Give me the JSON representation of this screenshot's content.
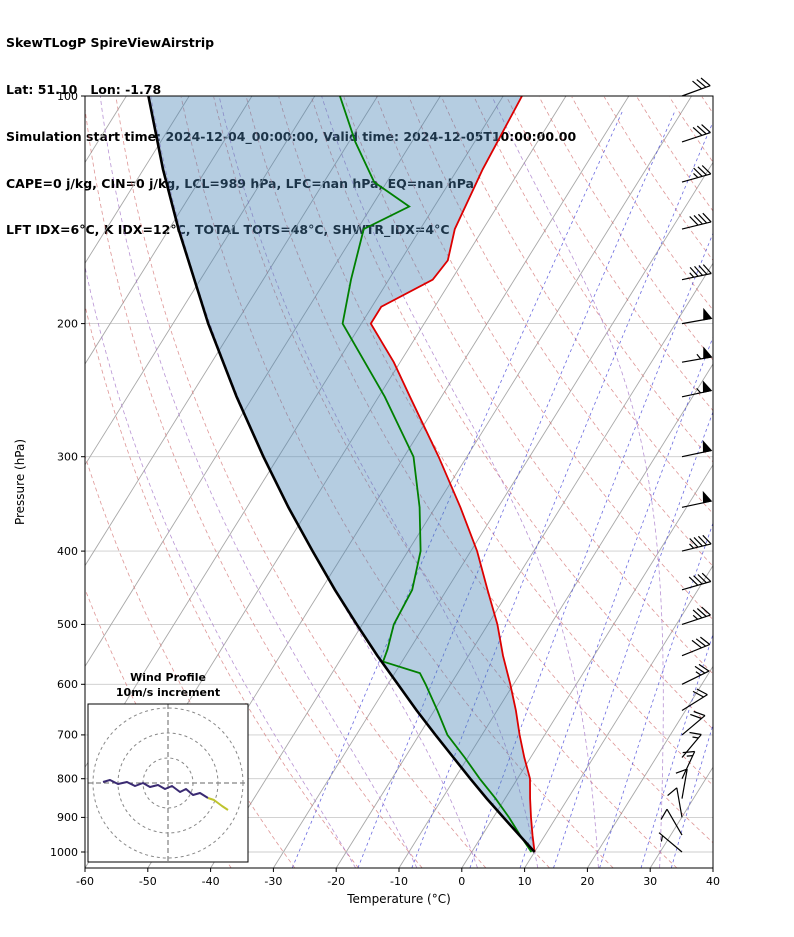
{
  "header": {
    "title": "SkewTLogP SpireViewAirstrip",
    "location": "Lat: 51.10   Lon: -1.78",
    "times": "Simulation start time: 2024-12-04_00:00:00, Valid time: 2024-12-05T10:00:00.00",
    "cape_line": "CAPE=0 j/kg, CIN=0 j/kg, LCL=989 hPa, LFC=nan hPa, EQ=nan hPa",
    "index_line": "LFT IDX=6°C, K IDX=12°C, TOTAL TOTS=48°C, SHWTR_IDX=4°C"
  },
  "chart_data": {
    "type": "skewt-logp",
    "pressure_axis": {
      "label": "Pressure (hPa)",
      "units": "hPa",
      "min": 100,
      "max": 1050,
      "ticks": [
        100,
        200,
        300,
        400,
        500,
        600,
        700,
        800,
        900,
        1000
      ]
    },
    "temperature_axis": {
      "label": "Temperature (°C)",
      "units": "°C",
      "min": -60,
      "max": 40,
      "ticks": [
        -60,
        -50,
        -40,
        -30,
        -20,
        -10,
        0,
        10,
        20,
        30,
        40
      ]
    },
    "skew_per_decade": 75,
    "profiles": {
      "temperature": {
        "pressure": [
          1000,
          950,
          900,
          850,
          800,
          750,
          700,
          650,
          600,
          550,
          500,
          450,
          400,
          350,
          300,
          250,
          225,
          200,
          190,
          175,
          165,
          150,
          125,
          100
        ],
        "temp": [
          10,
          8,
          6,
          4,
          2,
          -1,
          -4,
          -7,
          -10.5,
          -14.5,
          -18.5,
          -23.5,
          -29,
          -36,
          -44.5,
          -55,
          -61,
          -68.5,
          -68.5,
          -63,
          -62.5,
          -64.5,
          -66,
          -67
        ]
      },
      "dewpoint": {
        "pressure": [
          1000,
          950,
          900,
          850,
          800,
          750,
          700,
          650,
          600,
          580,
          560,
          540,
          500,
          450,
          400,
          350,
          300,
          250,
          200,
          175,
          150,
          140,
          130,
          115,
          100
        ],
        "temp": [
          9.5,
          6,
          2.5,
          -1.5,
          -6,
          -10.5,
          -15.5,
          -19.5,
          -24,
          -26,
          -33,
          -33.5,
          -35,
          -35.5,
          -38,
          -42.5,
          -48.5,
          -59,
          -73,
          -76,
          -79,
          -74,
          -82,
          -89,
          -96
        ]
      },
      "parcel": {
        "pressure": [
          1000,
          950,
          900,
          850,
          800,
          750,
          700,
          650,
          600,
          550,
          500,
          450,
          400,
          350,
          300,
          250,
          200,
          150,
          125,
          100
        ],
        "temp": [
          10,
          5.9,
          1.6,
          -2.9,
          -7.5,
          -12.3,
          -17.4,
          -22.8,
          -28.4,
          -34.5,
          -40.9,
          -47.8,
          -55.2,
          -63.4,
          -72.4,
          -82.6,
          -94.4,
          -108.5,
          -116.9,
          -126.5
        ]
      }
    },
    "wind_barbs": {
      "units": "m/s",
      "pressure": [
        100,
        115,
        130,
        150,
        175,
        200,
        225,
        250,
        300,
        350,
        400,
        450,
        500,
        550,
        600,
        650,
        700,
        750,
        800,
        850,
        900,
        950,
        1000
      ],
      "speed": [
        28,
        30,
        33,
        38,
        45,
        52,
        55,
        55,
        52,
        50,
        45,
        38,
        33,
        28,
        25,
        22,
        20,
        16,
        14,
        12,
        10,
        9,
        7
      ],
      "direction": [
        70,
        72,
        74,
        76,
        78,
        80,
        80,
        78,
        78,
        78,
        76,
        74,
        72,
        68,
        64,
        58,
        50,
        40,
        25,
        10,
        350,
        330,
        310
      ]
    },
    "hodograph": {
      "title": "Wind Profile",
      "subtitle": "10m/s increment",
      "ring_increment_ms": 10,
      "rings": [
        10,
        20,
        30
      ],
      "trace_low": [
        [
          24,
          -10.8
        ],
        [
          21.6,
          -9.2
        ],
        [
          18.4,
          -6.8
        ],
        [
          16,
          -6
        ]
      ],
      "trace_upper": [
        [
          16,
          -6
        ],
        [
          12.8,
          -4
        ],
        [
          10,
          -4.8
        ],
        [
          7.2,
          -2.4
        ],
        [
          4.8,
          -3.6
        ],
        [
          1.6,
          -1.2
        ],
        [
          -1.2,
          -2.4
        ],
        [
          -4,
          -0.8
        ],
        [
          -7.2,
          -1.6
        ],
        [
          -10,
          0
        ],
        [
          -13.2,
          -1.2
        ],
        [
          -16.4,
          0.4
        ],
        [
          -20,
          -0.4
        ],
        [
          -23.2,
          1.2
        ],
        [
          -26,
          0.4
        ]
      ]
    },
    "background": {
      "isotherms": {
        "start": -140,
        "end": 40,
        "step": 10
      },
      "dry_adiabats": {
        "start": -40,
        "end": 190,
        "step": 10
      },
      "moist_adiabats": {
        "values": [
          -20,
          -10,
          0,
          10,
          20,
          30
        ]
      },
      "mixing_ratio": {
        "values_g_kg": [
          0.4,
          1,
          2,
          4,
          7,
          10,
          16,
          24,
          32
        ]
      }
    },
    "colors": {
      "temperature": "#dd0000",
      "dewpoint": "#008000",
      "parcel": "#000000",
      "shade": "rgba(70,130,180,0.40)",
      "isotherm": "#a8a8a8",
      "dry_adiabat": "#d06a6a",
      "moist_adiabat": "#a06fc5",
      "mixing_ratio": "#4646d8",
      "pressure_grid": "#cccccc",
      "frame": "#000000",
      "barb": "#000000",
      "hodo_ring": "#888888",
      "hodo_axis": "#666666",
      "hodo_trace_main": "#3a2a72",
      "hodo_trace_low": "#bfc42e"
    }
  }
}
